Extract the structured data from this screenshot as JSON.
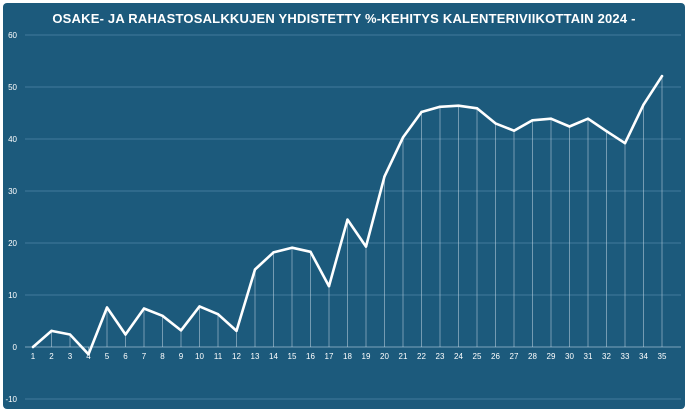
{
  "chart_data": {
    "type": "line",
    "title": "OSAKE- JA RAHASTOSALKKUJEN YHDISTETTY %-KEHITYS KALENTERIVIIKOTTAIN 2024 -",
    "xlabel": "",
    "ylabel": "",
    "ylim": [
      -10,
      60
    ],
    "yticks": [
      -10,
      0,
      10,
      20,
      30,
      40,
      50,
      60
    ],
    "grid": true,
    "legend": "none",
    "colors": {
      "background": "#1c5a7c",
      "line": "#ffffff",
      "grid": "#4f86a6"
    },
    "categories": [
      "1",
      "2",
      "3",
      "4",
      "5",
      "6",
      "7",
      "8",
      "9",
      "10",
      "11",
      "12",
      "13",
      "14",
      "15",
      "16",
      "17",
      "18",
      "19",
      "20",
      "21",
      "22",
      "23",
      "24",
      "25",
      "26",
      "27",
      "28",
      "29",
      "30",
      "31",
      "32",
      "33",
      "34",
      "35"
    ],
    "values": [
      0,
      3.1,
      2.4,
      -1.4,
      7.6,
      2.4,
      7.4,
      6.0,
      3.2,
      7.8,
      6.3,
      3.1,
      14.9,
      18.2,
      19.1,
      18.3,
      11.7,
      24.5,
      19.3,
      32.8,
      40.3,
      45.2,
      46.2,
      46.4,
      45.9,
      43.0,
      41.6,
      43.6,
      43.9,
      42.4,
      43.9,
      41.5,
      39.2,
      46.6,
      52.1
    ]
  }
}
